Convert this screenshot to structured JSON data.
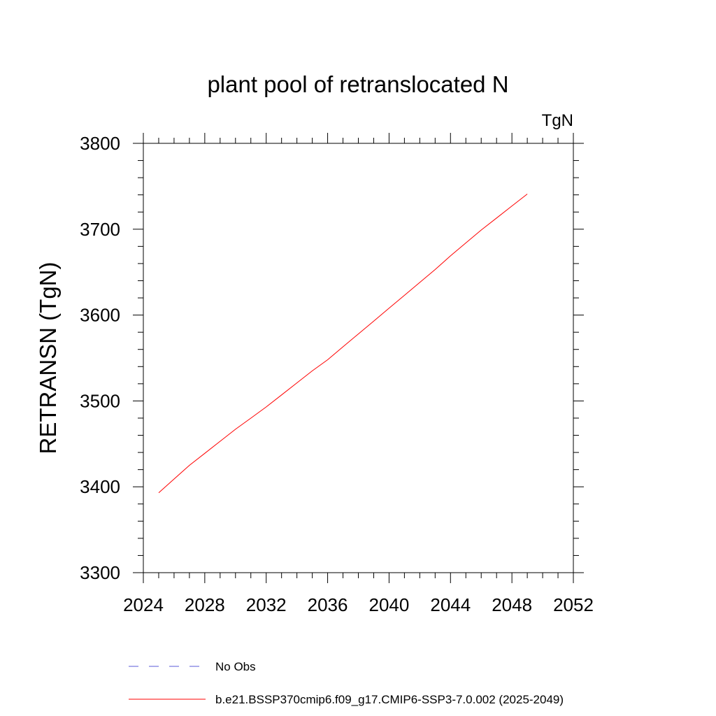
{
  "chart_data": {
    "type": "line",
    "title": "plant pool of retranslocated N",
    "units_label": "TgN",
    "xlabel": "",
    "ylabel": "RETRANSN  (TgN)",
    "xlim": [
      2024,
      2052
    ],
    "ylim": [
      3300,
      3800
    ],
    "x_ticks": [
      2024,
      2028,
      2032,
      2036,
      2040,
      2044,
      2048,
      2052
    ],
    "y_ticks": [
      3300,
      3400,
      3500,
      3600,
      3700,
      3800
    ],
    "x_minor_step": 1,
    "y_minor_step": 20,
    "grid": false,
    "legend_position": "bottom",
    "series": [
      {
        "name": "b.e21.BSSP370cmip6.f09_g17.CMIP6-SSP3-7.0.002 (2025-2049)",
        "color": "#ff0000",
        "style": "solid",
        "x": [
          2025,
          2026,
          2027,
          2028,
          2029,
          2030,
          2031,
          2032,
          2033,
          2034,
          2035,
          2036,
          2037,
          2038,
          2039,
          2040,
          2041,
          2042,
          2043,
          2044,
          2045,
          2046,
          2047,
          2048,
          2049
        ],
        "values": [
          3393,
          3409,
          3425,
          3439,
          3453,
          3467,
          3480,
          3493,
          3507,
          3521,
          3535,
          3548,
          3563,
          3578,
          3593,
          3608,
          3623,
          3638,
          3653,
          3669,
          3684,
          3699,
          3713,
          3727,
          3741
        ]
      },
      {
        "name": "No Obs",
        "color": "#5a5ad8",
        "style": "dashed",
        "x": [],
        "values": []
      }
    ]
  }
}
